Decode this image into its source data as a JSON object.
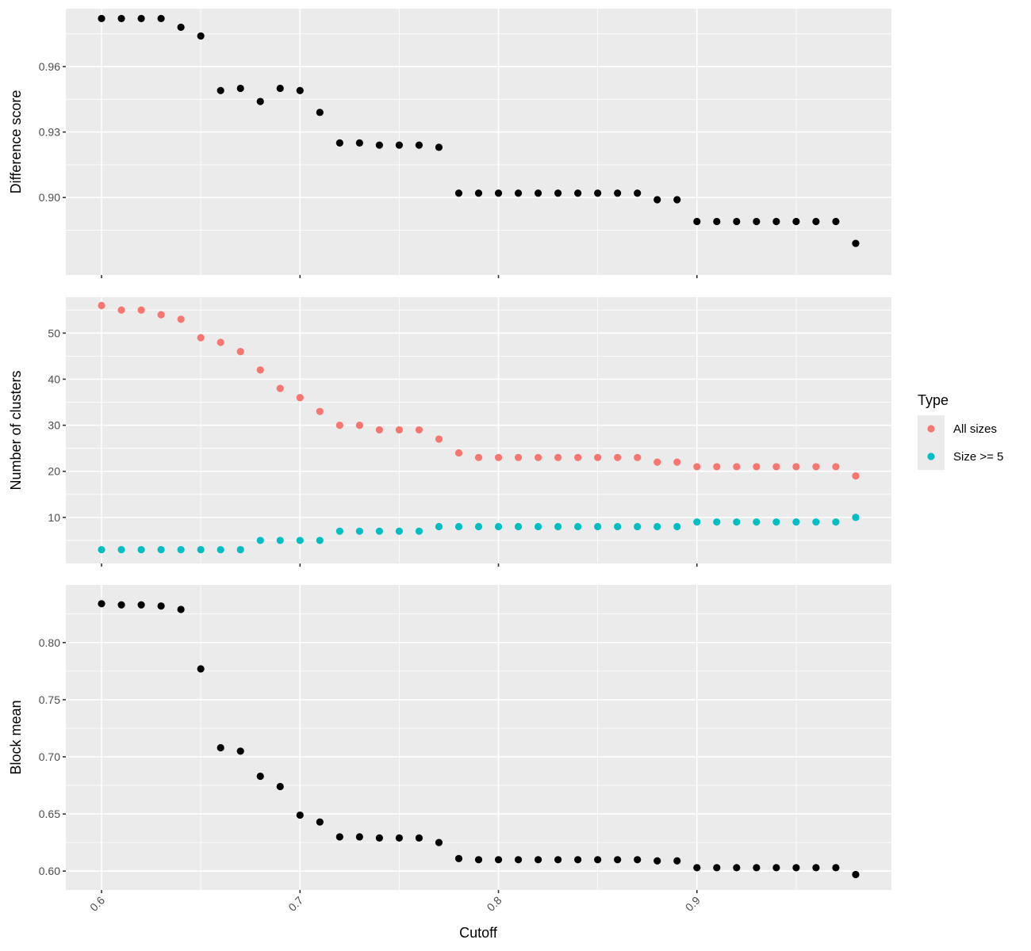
{
  "chart_data": {
    "type": "scatter",
    "xlabel": "Cutoff",
    "x_ticks": [
      0.6,
      0.7,
      0.8,
      0.9
    ],
    "x_tick_labels": [
      "0.6",
      "0.7",
      "0.8",
      "0.9"
    ],
    "x_range": [
      0.582,
      0.998
    ],
    "x": [
      0.6,
      0.61,
      0.62,
      0.63,
      0.64,
      0.65,
      0.66,
      0.67,
      0.68,
      0.69,
      0.7,
      0.71,
      0.72,
      0.73,
      0.74,
      0.75,
      0.76,
      0.77,
      0.78,
      0.79,
      0.8,
      0.81,
      0.82,
      0.83,
      0.84,
      0.85,
      0.86,
      0.87,
      0.88,
      0.89,
      0.9,
      0.91,
      0.92,
      0.93,
      0.94,
      0.95,
      0.96,
      0.97,
      0.98
    ],
    "grid": true,
    "panels": [
      {
        "ylabel": "Difference score",
        "ylim": [
          0.8645,
          0.9865
        ],
        "y_ticks": [
          0.9,
          0.93,
          0.96
        ],
        "y_tick_labels": [
          "0.90",
          "0.93",
          "0.96"
        ],
        "series": [
          {
            "color": "#000000",
            "values": [
              0.982,
              0.982,
              0.982,
              0.982,
              0.978,
              0.974,
              0.949,
              0.95,
              0.944,
              0.95,
              0.949,
              0.939,
              0.925,
              0.925,
              0.924,
              0.924,
              0.924,
              0.923,
              0.902,
              0.902,
              0.902,
              0.902,
              0.902,
              0.902,
              0.902,
              0.902,
              0.902,
              0.902,
              0.899,
              0.899,
              0.889,
              0.889,
              0.889,
              0.889,
              0.889,
              0.889,
              0.889,
              0.889,
              0.879
            ]
          }
        ]
      },
      {
        "ylabel": "Number of clusters",
        "ylim": [
          0,
          57.8
        ],
        "y_ticks": [
          10,
          20,
          30,
          40,
          50
        ],
        "y_tick_labels": [
          "10",
          "20",
          "30",
          "40",
          "50"
        ],
        "series": [
          {
            "name": "All sizes",
            "color": "#F8766D",
            "values": [
              56,
              55,
              55,
              54,
              53,
              49,
              48,
              46,
              42,
              38,
              36,
              33,
              30,
              30,
              29,
              29,
              29,
              27,
              24,
              23,
              23,
              23,
              23,
              23,
              23,
              23,
              23,
              23,
              22,
              22,
              21,
              21,
              21,
              21,
              21,
              21,
              21,
              21,
              19
            ]
          },
          {
            "name": "Size >= 5",
            "color": "#00BFC4",
            "values": [
              3,
              3,
              3,
              3,
              3,
              3,
              3,
              3,
              5,
              5,
              5,
              5,
              7,
              7,
              7,
              7,
              7,
              8,
              8,
              8,
              8,
              8,
              8,
              8,
              8,
              8,
              8,
              8,
              8,
              8,
              9,
              9,
              9,
              9,
              9,
              9,
              9,
              9,
              10
            ]
          }
        ]
      },
      {
        "ylabel": "Block mean",
        "ylim": [
          0.5835,
          0.8505
        ],
        "y_ticks": [
          0.6,
          0.65,
          0.7,
          0.75,
          0.8
        ],
        "y_tick_labels": [
          "0.60",
          "0.65",
          "0.70",
          "0.75",
          "0.80"
        ],
        "series": [
          {
            "color": "#000000",
            "values": [
              0.834,
              0.833,
              0.833,
              0.832,
              0.829,
              0.777,
              0.708,
              0.705,
              0.683,
              0.674,
              0.649,
              0.643,
              0.63,
              0.63,
              0.629,
              0.629,
              0.629,
              0.625,
              0.611,
              0.61,
              0.61,
              0.61,
              0.61,
              0.61,
              0.61,
              0.61,
              0.61,
              0.61,
              0.609,
              0.609,
              0.603,
              0.603,
              0.603,
              0.603,
              0.603,
              0.603,
              0.603,
              0.603,
              0.597
            ]
          }
        ]
      }
    ],
    "legend": {
      "title": "Type",
      "placement": "right",
      "entries": [
        {
          "label": "All sizes",
          "color": "#F8766D"
        },
        {
          "label": "Size >= 5",
          "color": "#00BFC4"
        }
      ]
    }
  }
}
